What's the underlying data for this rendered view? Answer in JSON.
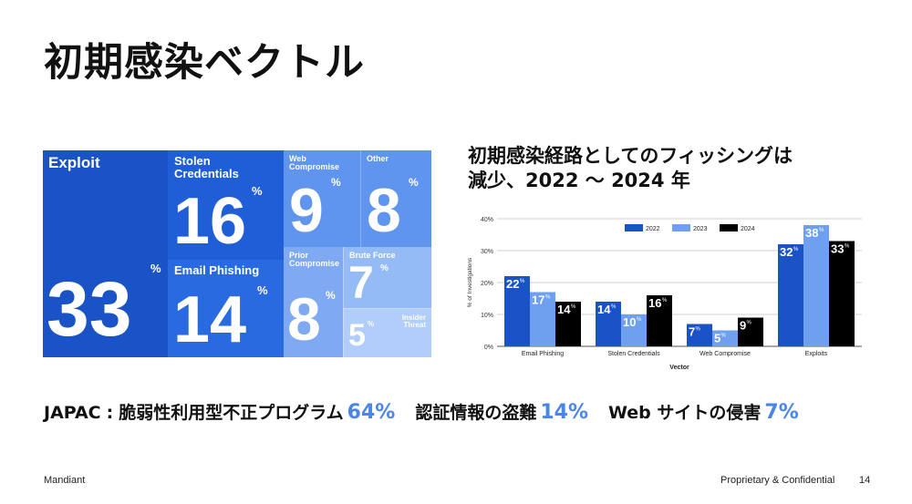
{
  "page": {
    "title": "初期感染ベクトル",
    "page_number": "14"
  },
  "treemap": {
    "tiles": [
      {
        "label": "Exploit",
        "value": "33",
        "pct": "%"
      },
      {
        "label": "Stolen\nCredentials",
        "value": "16",
        "pct": "%"
      },
      {
        "label": "Email Phishing",
        "value": "14",
        "pct": "%"
      },
      {
        "label": "Web\nCompromise",
        "value": "9",
        "pct": "%"
      },
      {
        "label": "Other",
        "value": "8",
        "pct": "%"
      },
      {
        "label": "Prior\nCompromise",
        "value": "8",
        "pct": "%"
      },
      {
        "label": "Brute Force",
        "value": "7",
        "pct": "%"
      },
      {
        "label": "Insider\nThreat",
        "value": "5",
        "pct": "%"
      }
    ],
    "colors": {
      "dark": "#1a53c5",
      "mid": "#2f6fe0",
      "light": "#5f95ee",
      "lighter": "#8ab4f5",
      "lightest": "#a9c8f8"
    }
  },
  "chart_title": {
    "line1": "初期感染経路としてのフィッシングは",
    "line2": "減少、2022 ～ 2024 年"
  },
  "chart_data": {
    "type": "bar",
    "categories": [
      "Email Phishing",
      "Stolen Credentials",
      "Web Compromise",
      "Exploits"
    ],
    "series": [
      {
        "name": "2022",
        "values": [
          22,
          14,
          7,
          32
        ],
        "color": "#1a53c5"
      },
      {
        "name": "2023",
        "values": [
          17,
          10,
          5,
          38
        ],
        "color": "#6fa0f0"
      },
      {
        "name": "2024",
        "values": [
          14,
          16,
          9,
          33
        ],
        "color": "#000000"
      }
    ],
    "ylabel": "% of Investigations",
    "xlabel": "Vector",
    "ylim": [
      0,
      40
    ],
    "yticks": [
      "0%",
      "10%",
      "20%",
      "30%",
      "40%"
    ],
    "value_suffix": "%",
    "grid": true,
    "legend": "top-center"
  },
  "japac": {
    "region": "JAPAC",
    "colon": ":",
    "items": [
      {
        "label": "脆弱性利用型不正プログラム",
        "value": "64%"
      },
      {
        "label": "認証情報の盗難",
        "value": "14%"
      },
      {
        "label": "Web サイトの侵害",
        "value": "7%"
      }
    ]
  },
  "footer": {
    "brand": "Mandiant",
    "confidential": "Proprietary & Confidential"
  }
}
